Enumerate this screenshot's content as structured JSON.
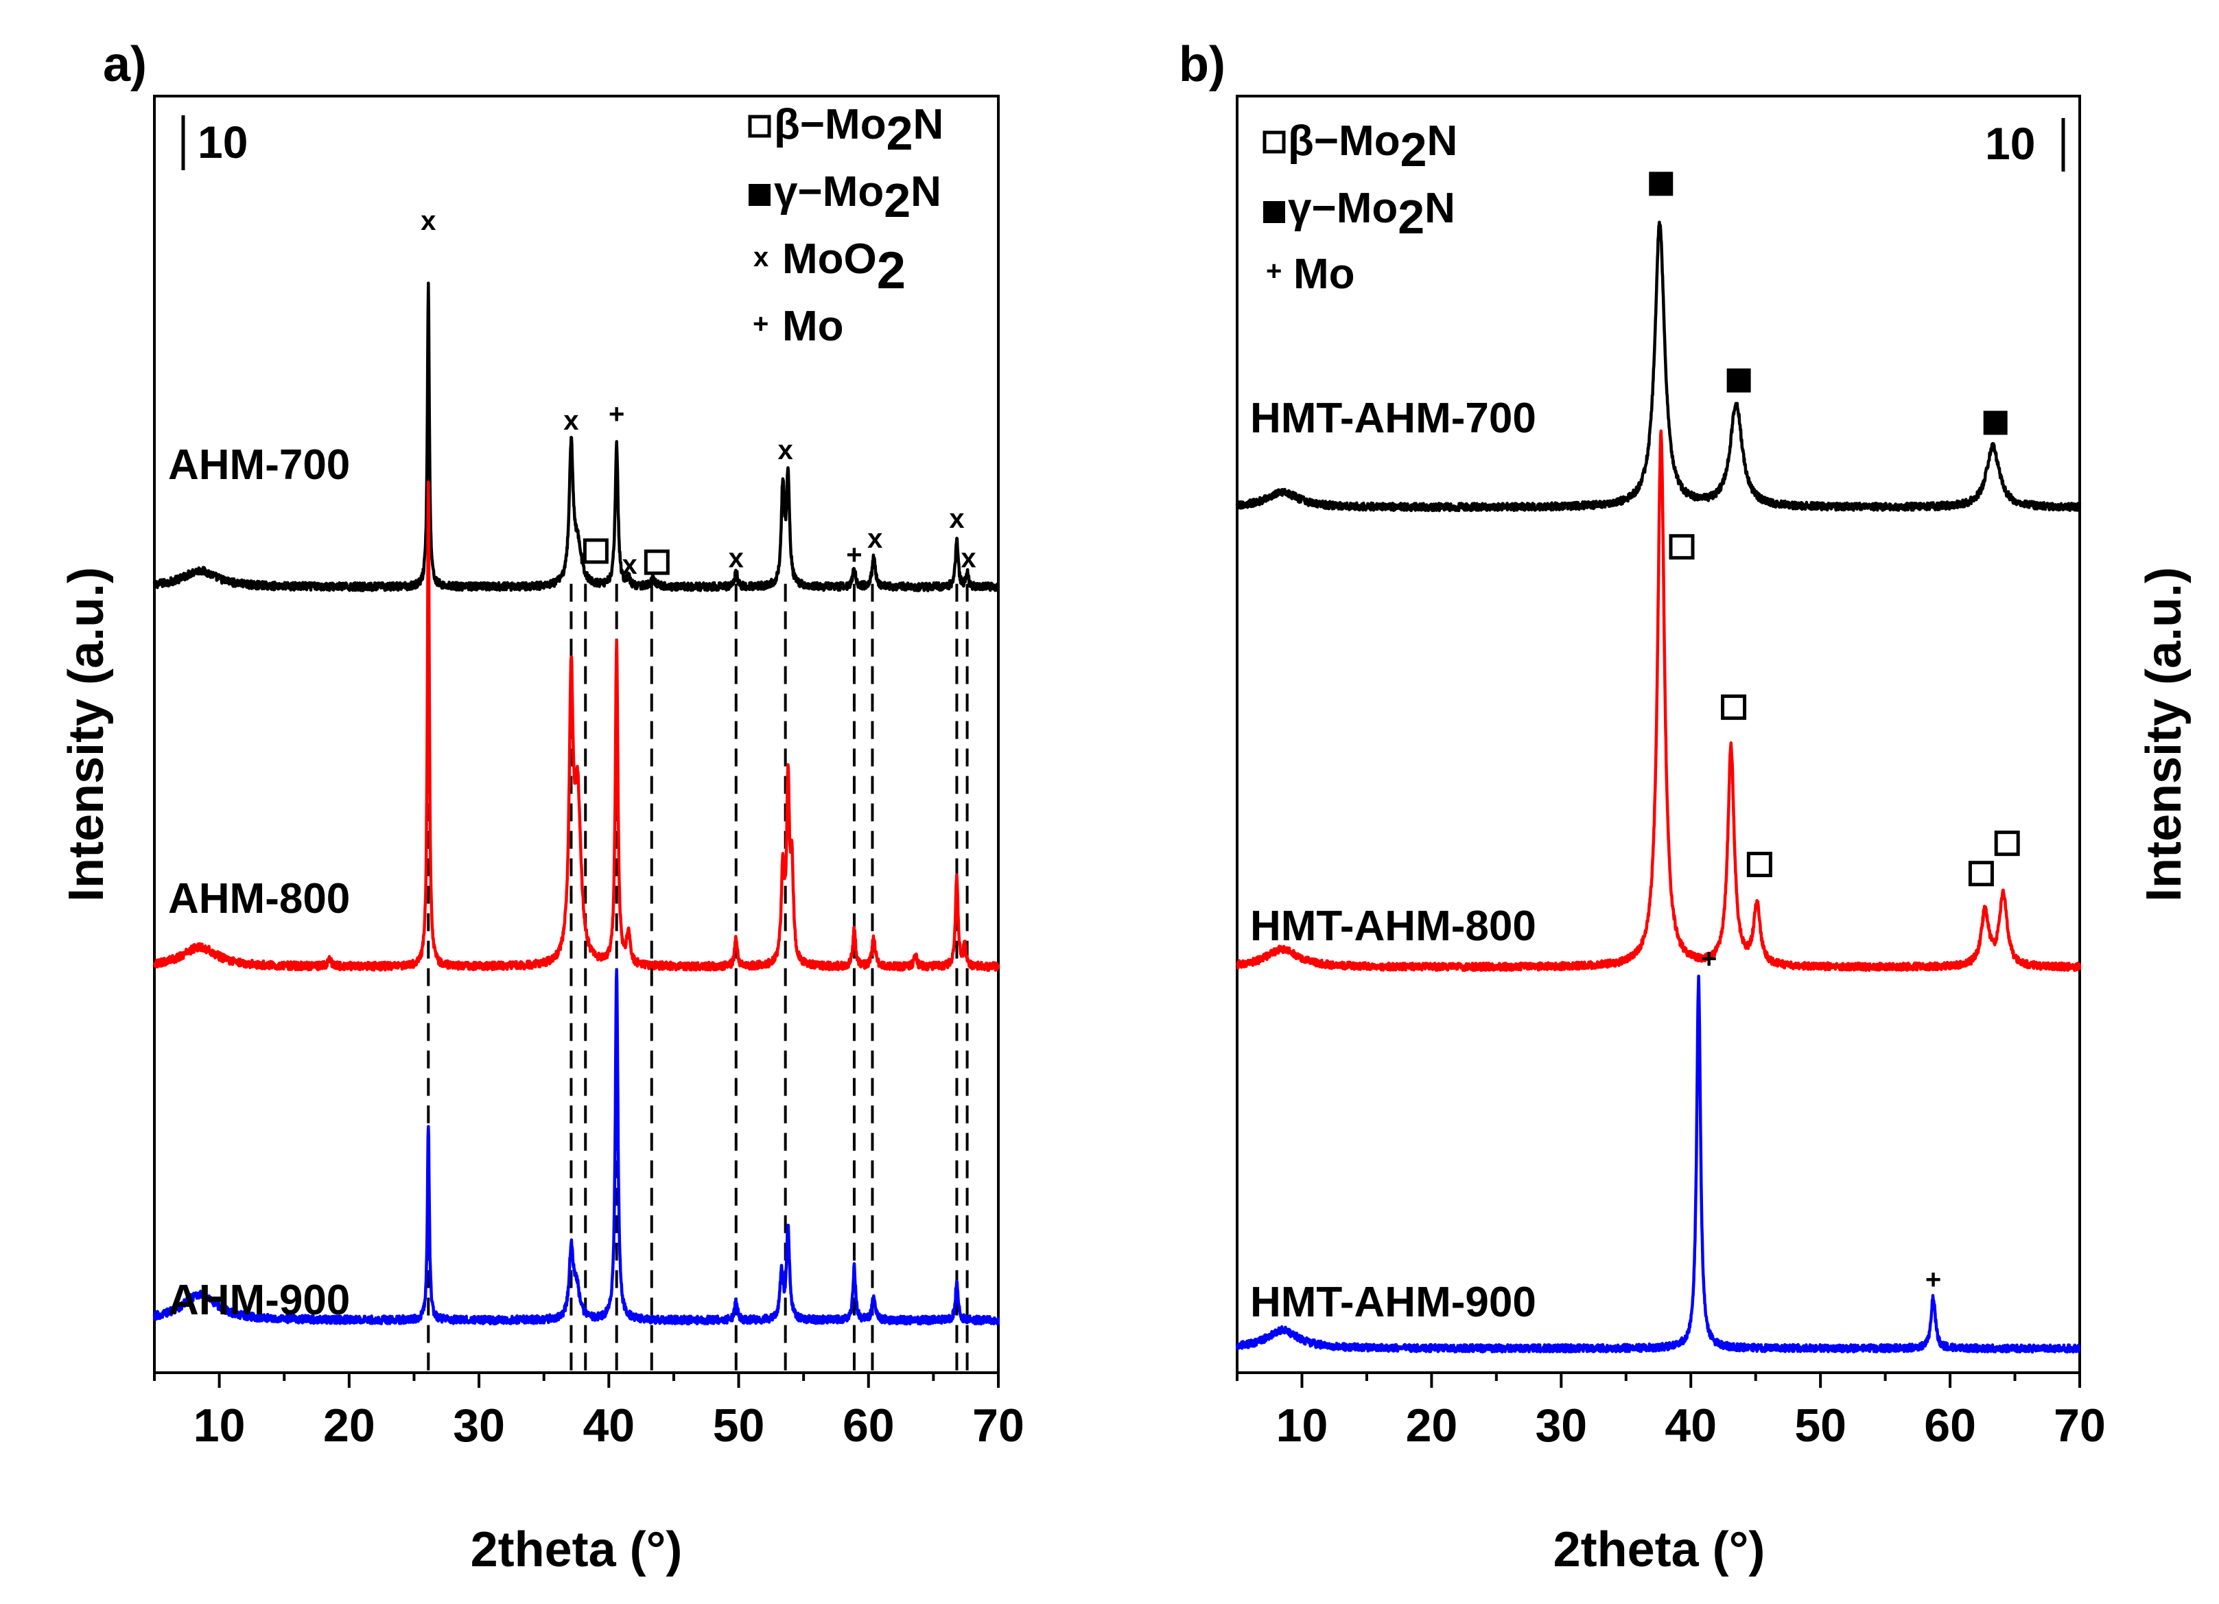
{
  "figure": {
    "description_panels": [
      "a)",
      "b)"
    ]
  },
  "chart_data": [
    {
      "type": "line",
      "panel_label": "a)",
      "xlabel": "2theta (°)",
      "ylabel": "Intensity (a.u.)",
      "xlim": [
        5,
        70
      ],
      "xticks": [
        10,
        20,
        30,
        40,
        50,
        60,
        70
      ],
      "scale_bar_label": "10",
      "legend": [
        {
          "marker": "□",
          "label": "β−Mo",
          "sub": "2",
          "tail": "N"
        },
        {
          "marker": "■",
          "label": "γ−Mo",
          "sub": "2",
          "tail": "N"
        },
        {
          "marker": "x",
          "label": "MoO",
          "sub": "2",
          "tail": ""
        },
        {
          "marker": "+",
          "label": "Mo",
          "sub": "",
          "tail": ""
        }
      ],
      "reference_lines_2theta": [
        26.1,
        37.1,
        38.2,
        40.6,
        43.3,
        49.8,
        53.6,
        58.9,
        60.3,
        66.8,
        67.6
      ],
      "series": [
        {
          "name": "AHM-700",
          "color": "#000000",
          "baseline_level": 0.0,
          "peaks": [
            {
              "x": 8.5,
              "h": 0.25,
              "w": 1.6
            },
            {
              "x": 26.1,
              "h": 4.6,
              "w": 0.09
            },
            {
              "x": 37.1,
              "h": 2.05,
              "w": 0.18
            },
            {
              "x": 37.6,
              "h": 0.6,
              "w": 0.35
            },
            {
              "x": 40.6,
              "h": 2.2,
              "w": 0.13
            },
            {
              "x": 41.5,
              "h": 0.12,
              "w": 0.15
            },
            {
              "x": 43.4,
              "h": 0.1,
              "w": 0.25
            },
            {
              "x": 49.8,
              "h": 0.25,
              "w": 0.12
            },
            {
              "x": 53.4,
              "h": 1.5,
              "w": 0.14
            },
            {
              "x": 53.8,
              "h": 1.7,
              "w": 0.14
            },
            {
              "x": 58.9,
              "h": 0.3,
              "w": 0.12
            },
            {
              "x": 60.4,
              "h": 0.45,
              "w": 0.15
            },
            {
              "x": 66.8,
              "h": 0.75,
              "w": 0.12
            },
            {
              "x": 67.6,
              "h": 0.2,
              "w": 0.12
            }
          ],
          "annotations": [
            {
              "x": 26.1,
              "y": 5.6,
              "text": "x"
            },
            {
              "x": 37.1,
              "y": 2.55,
              "text": "x"
            },
            {
              "x": 40.6,
              "y": 2.65,
              "text": "+"
            },
            {
              "x": 39.0,
              "y": 0.55,
              "text": "□"
            },
            {
              "x": 41.6,
              "y": 0.35,
              "text": "x"
            },
            {
              "x": 43.7,
              "y": 0.38,
              "text": "□"
            },
            {
              "x": 49.8,
              "y": 0.45,
              "text": "x"
            },
            {
              "x": 53.6,
              "y": 2.1,
              "text": "x"
            },
            {
              "x": 58.9,
              "y": 0.5,
              "text": "+"
            },
            {
              "x": 60.5,
              "y": 0.75,
              "text": "x"
            },
            {
              "x": 66.8,
              "y": 1.05,
              "text": "x"
            },
            {
              "x": 67.7,
              "y": 0.45,
              "text": "x"
            }
          ],
          "label": "AHM-700"
        },
        {
          "name": "AHM-800",
          "color": "#ff0000",
          "baseline_level": -5.8,
          "peaks": [
            {
              "x": 8.5,
              "h": 0.3,
              "w": 1.6
            },
            {
              "x": 18.5,
              "h": 0.12,
              "w": 0.15
            },
            {
              "x": 26.1,
              "h": 7.4,
              "w": 0.09
            },
            {
              "x": 37.1,
              "h": 4.1,
              "w": 0.18
            },
            {
              "x": 37.6,
              "h": 2.5,
              "w": 0.3
            },
            {
              "x": 40.6,
              "h": 4.9,
              "w": 0.12
            },
            {
              "x": 41.5,
              "h": 0.5,
              "w": 0.15
            },
            {
              "x": 49.8,
              "h": 0.45,
              "w": 0.12
            },
            {
              "x": 53.4,
              "h": 1.4,
              "w": 0.14
            },
            {
              "x": 53.8,
              "h": 2.7,
              "w": 0.13
            },
            {
              "x": 54.1,
              "h": 1.4,
              "w": 0.14
            },
            {
              "x": 58.9,
              "h": 0.6,
              "w": 0.12
            },
            {
              "x": 60.4,
              "h": 0.45,
              "w": 0.15
            },
            {
              "x": 63.6,
              "h": 0.2,
              "w": 0.12
            },
            {
              "x": 66.8,
              "h": 1.4,
              "w": 0.12
            },
            {
              "x": 67.4,
              "h": 0.3,
              "w": 0.12
            }
          ],
          "annotations": [],
          "label": "AHM-800"
        },
        {
          "name": "AHM-900",
          "color": "#0000ff",
          "baseline_level": -11.2,
          "peaks": [
            {
              "x": 8.5,
              "h": 0.4,
              "w": 1.6
            },
            {
              "x": 26.1,
              "h": 3.0,
              "w": 0.09
            },
            {
              "x": 37.1,
              "h": 1.0,
              "w": 0.18
            },
            {
              "x": 37.5,
              "h": 0.5,
              "w": 0.3
            },
            {
              "x": 40.6,
              "h": 5.4,
              "w": 0.12
            },
            {
              "x": 49.8,
              "h": 0.3,
              "w": 0.12
            },
            {
              "x": 53.3,
              "h": 0.7,
              "w": 0.14
            },
            {
              "x": 53.8,
              "h": 1.4,
              "w": 0.14
            },
            {
              "x": 58.9,
              "h": 0.8,
              "w": 0.12
            },
            {
              "x": 60.4,
              "h": 0.35,
              "w": 0.15
            },
            {
              "x": 66.8,
              "h": 0.6,
              "w": 0.12
            }
          ],
          "annotations": [],
          "label": "AHM-900"
        }
      ],
      "ylim": [
        -12,
        7.5
      ]
    },
    {
      "type": "line",
      "panel_label": "b)",
      "xlabel": "2theta (°)",
      "ylabel": "Intensity (a.u.)",
      "xlim": [
        5,
        70
      ],
      "xticks": [
        10,
        20,
        30,
        40,
        50,
        60,
        70
      ],
      "scale_bar_label": "10",
      "legend": [
        {
          "marker": "□",
          "label": "β−Mo",
          "sub": "2",
          "tail": "N"
        },
        {
          "marker": "■",
          "label": "γ−Mo",
          "sub": "2",
          "tail": "N"
        },
        {
          "marker": "+",
          "label": "Mo",
          "sub": "",
          "tail": ""
        }
      ],
      "reference_lines_2theta": [],
      "series": [
        {
          "name": "HMT-AHM-700",
          "color": "#000000",
          "baseline_level": 0.0,
          "peaks": [
            {
              "x": 8.5,
              "h": 0.25,
              "w": 1.5
            },
            {
              "x": 37.6,
              "h": 4.7,
              "w": 0.45
            },
            {
              "x": 43.5,
              "h": 1.7,
              "w": 0.55
            },
            {
              "x": 63.3,
              "h": 1.0,
              "w": 0.6
            }
          ],
          "annotations": [
            {
              "x": 37.7,
              "y": 5.35,
              "text": "■"
            },
            {
              "x": 43.7,
              "y": 2.1,
              "text": "■"
            },
            {
              "x": 63.5,
              "y": 1.4,
              "text": "■"
            },
            {
              "x": 39.3,
              "y": -0.65,
              "text": "□"
            }
          ],
          "label": "HMT-AHM-700"
        },
        {
          "name": "HMT-AHM-800",
          "color": "#ff0000",
          "baseline_level": -7.6,
          "peaks": [
            {
              "x": 8.5,
              "h": 0.3,
              "w": 1.5
            },
            {
              "x": 37.7,
              "h": 8.8,
              "w": 0.32
            },
            {
              "x": 43.1,
              "h": 3.6,
              "w": 0.3
            },
            {
              "x": 45.1,
              "h": 1.0,
              "w": 0.3
            },
            {
              "x": 62.7,
              "h": 0.9,
              "w": 0.35
            },
            {
              "x": 64.1,
              "h": 1.2,
              "w": 0.35
            }
          ],
          "annotations": [
            {
              "x": 43.3,
              "y": -3.3,
              "text": "□"
            },
            {
              "x": 45.3,
              "y": -5.9,
              "text": "□"
            },
            {
              "x": 62.4,
              "y": -6.05,
              "text": "□"
            },
            {
              "x": 64.4,
              "y": -5.55,
              "text": "□"
            }
          ],
          "label": "HMT-AHM-800"
        },
        {
          "name": "HMT-AHM-900",
          "color": "#0000ff",
          "baseline_level": -13.9,
          "peaks": [
            {
              "x": 8.5,
              "h": 0.3,
              "w": 1.5
            },
            {
              "x": 40.6,
              "h": 6.1,
              "w": 0.18
            },
            {
              "x": 58.7,
              "h": 0.85,
              "w": 0.2
            }
          ],
          "annotations": [
            {
              "x": 41.4,
              "y": -7.45,
              "text": "+"
            },
            {
              "x": 58.7,
              "y": -12.75,
              "text": "+"
            }
          ],
          "label": "HMT-AHM-900"
        }
      ],
      "ylim": [
        -14.3,
        6.8
      ]
    }
  ]
}
